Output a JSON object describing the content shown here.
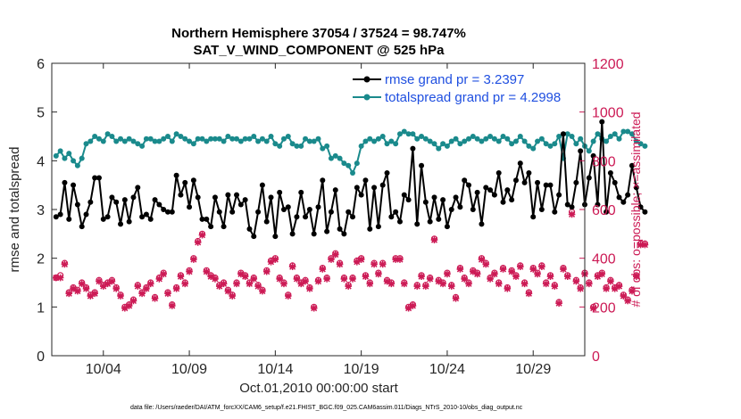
{
  "chart_data": {
    "type": "line",
    "title": "Northern Hemisphere 37054 / 37524 = 98.747%",
    "subtitle": "SAT_V_WIND_COMPONENT @ 525 hPa",
    "xlabel": "Oct.01,2010 00:00:00 start",
    "ylabel": "rmse and totalspread",
    "ylabel_right": "# of obs: o=possible; ×=assimilated",
    "xlim": [
      1,
      32
    ],
    "ylim": [
      0,
      6
    ],
    "ylim_right": [
      0,
      1200
    ],
    "x_ticks": [
      4,
      9,
      14,
      19,
      24,
      29
    ],
    "x_tick_labels": [
      "10/04",
      "10/09",
      "10/14",
      "10/19",
      "10/24",
      "10/29"
    ],
    "y_ticks": [
      0,
      1,
      2,
      3,
      4,
      5,
      6
    ],
    "y_ticks_right": [
      0,
      200,
      400,
      600,
      800,
      1000,
      1200
    ],
    "legend_position": "top-right",
    "footnote": "data file: /Users/raeder/DAI/ATM_forcXX/CAM6_setup/f.e21.FHIST_BGC.f09_025.CAM6assim.011/Diags_NTrS_2010-10/obs_diag_output.nc",
    "series": [
      {
        "name": "rmse grand pr = 3.2397",
        "axis": "left",
        "color": "#000000",
        "marker": "filled-circle",
        "x_start": 1.25,
        "x_step": 0.25,
        "values": [
          2.85,
          2.9,
          3.55,
          2.8,
          3.5,
          3.1,
          2.65,
          2.9,
          3.15,
          3.65,
          3.65,
          2.8,
          2.85,
          3.25,
          3.15,
          2.7,
          3.2,
          2.75,
          3.25,
          3.45,
          2.85,
          2.9,
          2.8,
          3.2,
          3.1,
          3.0,
          2.95,
          2.95,
          3.7,
          3.3,
          3.55,
          3.05,
          3.6,
          3.25,
          2.8,
          2.8,
          2.65,
          3.25,
          2.95,
          2.65,
          3.3,
          2.95,
          3.3,
          3.1,
          3.2,
          2.6,
          2.45,
          2.95,
          3.5,
          2.75,
          3.25,
          2.45,
          3.35,
          3.0,
          3.05,
          2.5,
          2.85,
          3.35,
          2.85,
          3.0,
          2.5,
          3.05,
          3.6,
          2.55,
          2.95,
          3.4,
          2.6,
          2.5,
          2.95,
          2.85,
          3.45,
          3.3,
          3.6,
          2.6,
          3.45,
          2.65,
          3.5,
          3.75,
          2.85,
          2.95,
          2.75,
          3.3,
          3.2,
          4.25,
          2.7,
          3.9,
          3.15,
          2.75,
          3.25,
          2.8,
          3.2,
          2.65,
          3.0,
          3.25,
          3.05,
          3.6,
          3.5,
          3.0,
          3.35,
          2.7,
          3.45,
          3.4,
          3.3,
          3.75,
          3.15,
          3.4,
          3.2,
          3.6,
          3.95,
          3.55,
          3.75,
          2.85,
          3.55,
          3.0,
          3.5,
          3.5,
          2.95,
          3.3,
          4.55,
          3.1,
          3.05,
          3.55,
          4.2,
          3.1,
          3.65,
          4.1,
          3.1,
          4.8,
          2.95,
          3.75,
          3.55,
          3.25,
          3.15,
          3.3,
          3.9,
          3.45,
          3.05,
          2.95
        ]
      },
      {
        "name": "totalspread grand pr = 4.2998",
        "axis": "left",
        "color": "#1a8a8c",
        "marker": "filled-circle",
        "x_start": 1.25,
        "x_step": 0.25,
        "values": [
          4.1,
          4.2,
          4.05,
          4.15,
          4.0,
          3.9,
          4.05,
          4.35,
          4.4,
          4.5,
          4.45,
          4.4,
          4.55,
          4.5,
          4.4,
          4.45,
          4.4,
          4.45,
          4.4,
          4.35,
          4.3,
          4.45,
          4.45,
          4.4,
          4.4,
          4.45,
          4.5,
          4.4,
          4.55,
          4.5,
          4.45,
          4.4,
          4.35,
          4.45,
          4.45,
          4.4,
          4.45,
          4.45,
          4.45,
          4.4,
          4.5,
          4.45,
          4.45,
          4.4,
          4.45,
          4.45,
          4.5,
          4.4,
          4.45,
          4.4,
          4.5,
          4.35,
          4.3,
          4.45,
          4.5,
          4.35,
          4.3,
          4.3,
          4.45,
          4.4,
          4.4,
          4.45,
          4.25,
          4.3,
          4.05,
          4.1,
          4.05,
          3.95,
          3.9,
          3.75,
          3.95,
          4.3,
          4.4,
          4.45,
          4.4,
          4.45,
          4.5,
          4.35,
          4.4,
          4.35,
          4.55,
          4.6,
          4.55,
          4.55,
          4.45,
          4.5,
          4.45,
          4.4,
          4.35,
          4.25,
          4.35,
          4.3,
          4.4,
          4.45,
          4.35,
          4.4,
          4.45,
          4.5,
          4.45,
          4.4,
          4.45,
          4.5,
          4.45,
          4.4,
          4.5,
          4.45,
          4.35,
          4.4,
          4.5,
          4.4,
          4.3,
          4.25,
          4.4,
          4.45,
          4.35,
          4.3,
          4.35,
          4.5,
          4.05,
          4.55,
          4.5,
          4.35,
          4.45,
          4.3,
          4.2,
          4.4,
          4.55,
          4.45,
          4.4,
          4.5,
          4.55,
          4.45,
          4.6,
          4.6,
          4.55,
          4.4,
          4.35,
          4.3
        ]
      },
      {
        "name": "# obs possible",
        "axis": "right",
        "color": "#cc1a55",
        "marker": "open-circle",
        "x_start": 1.25,
        "x_step": 0.25,
        "values": [
          320,
          330,
          380,
          260,
          280,
          270,
          300,
          280,
          250,
          260,
          310,
          290,
          300,
          310,
          280,
          250,
          200,
          210,
          230,
          290,
          260,
          280,
          300,
          240,
          320,
          340,
          260,
          210,
          280,
          330,
          300,
          350,
          400,
          470,
          500,
          350,
          330,
          320,
          290,
          300,
          270,
          250,
          300,
          340,
          330,
          300,
          320,
          290,
          270,
          350,
          390,
          400,
          320,
          300,
          250,
          370,
          320,
          300,
          310,
          280,
          200,
          310,
          360,
          320,
          400,
          420,
          380,
          320,
          290,
          320,
          390,
          400,
          330,
          300,
          380,
          340,
          380,
          310,
          300,
          400,
          400,
          300,
          200,
          210,
          290,
          330,
          290,
          320,
          480,
          310,
          300,
          340,
          290,
          240,
          360,
          320,
          300,
          350,
          340,
          400,
          380,
          320,
          340,
          300,
          360,
          280,
          350,
          330,
          370,
          300,
          260,
          360,
          340,
          370,
          300,
          330,
          290,
          220,
          360,
          330,
          590,
          310,
          280,
          340,
          300,
          200,
          330,
          340,
          280,
          310,
          280,
          290,
          250,
          230,
          270,
          330,
          460,
          460
        ]
      },
      {
        "name": "# obs assimilated",
        "axis": "right",
        "color": "#cc1a55",
        "marker": "cross",
        "x_start": 1.25,
        "x_step": 0.25,
        "values": [
          320,
          320,
          375,
          255,
          275,
          265,
          295,
          275,
          245,
          255,
          305,
          285,
          295,
          305,
          275,
          245,
          195,
          205,
          225,
          285,
          255,
          275,
          295,
          235,
          315,
          335,
          255,
          205,
          275,
          325,
          295,
          345,
          395,
          465,
          495,
          345,
          325,
          315,
          285,
          295,
          265,
          245,
          295,
          335,
          325,
          295,
          315,
          285,
          265,
          345,
          385,
          395,
          315,
          295,
          245,
          365,
          315,
          295,
          305,
          275,
          195,
          305,
          355,
          315,
          395,
          415,
          375,
          315,
          285,
          315,
          385,
          395,
          325,
          295,
          375,
          335,
          375,
          305,
          295,
          395,
          395,
          295,
          195,
          205,
          285,
          325,
          285,
          315,
          475,
          305,
          295,
          335,
          285,
          235,
          355,
          315,
          295,
          345,
          335,
          395,
          375,
          315,
          335,
          295,
          355,
          275,
          345,
          325,
          365,
          295,
          255,
          355,
          335,
          365,
          295,
          325,
          285,
          215,
          355,
          325,
          580,
          305,
          275,
          335,
          295,
          195,
          325,
          335,
          275,
          305,
          275,
          285,
          245,
          225,
          265,
          325,
          455,
          455
        ]
      }
    ]
  }
}
